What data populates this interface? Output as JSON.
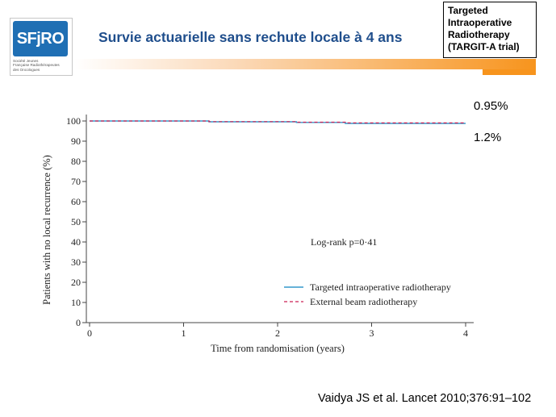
{
  "logo": {
    "mark": "SFjRO",
    "lines": [
      "Société   Jeunes",
      "Française  Radiothérapeutes",
      "des       Oncologues"
    ]
  },
  "header": {
    "title": "Survie actuarielle sans rechute locale à 4 ans"
  },
  "trial_box": {
    "lines": [
      "Targeted",
      "Intraoperative",
      "Radiotherapy",
      "(TARGIT-A trial)"
    ]
  },
  "side_values": [
    "0.95%",
    "1.2%"
  ],
  "citation": "Vaidya JS et al. Lancet 2010;376:91–102",
  "colors": {
    "brand_blue": "#1f4e8c",
    "accent_orange": "#f7941d",
    "series_tiort": "#3399cc",
    "series_ebrt": "#cc2255"
  },
  "chart_data": {
    "type": "line",
    "title": "",
    "xlabel": "Time from randomisation (years)",
    "ylabel": "Patients with no local recurrence (%)",
    "xlim": [
      0,
      4
    ],
    "ylim": [
      0,
      100
    ],
    "xticks": [
      0,
      1,
      2,
      3,
      4
    ],
    "yticks": [
      0,
      10,
      20,
      30,
      40,
      50,
      60,
      70,
      80,
      90,
      100
    ],
    "grid": false,
    "legend_position": "lower-right",
    "annotation": "Log-rank p=0·41",
    "series": [
      {
        "name": "Targeted intraoperative radiotherapy",
        "style": "solid",
        "x": [
          0,
          1.27,
          1.27,
          2.2,
          2.2,
          2.72,
          2.72,
          4
        ],
        "y": [
          100,
          100,
          99.6,
          99.6,
          99.3,
          99.3,
          98.8,
          98.8
        ]
      },
      {
        "name": "External beam radiotherapy",
        "style": "dashed",
        "x": [
          0,
          1.27,
          1.27,
          2.2,
          2.2,
          2.72,
          2.72,
          4
        ],
        "y": [
          100,
          100,
          99.7,
          99.7,
          99.4,
          99.4,
          99.05,
          99.05
        ]
      }
    ]
  }
}
